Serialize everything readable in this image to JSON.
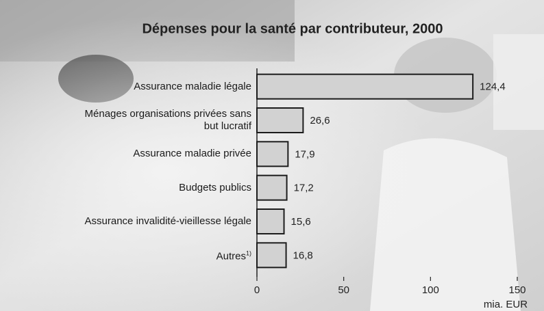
{
  "chart_data": {
    "type": "bar",
    "orientation": "horizontal",
    "title": "Dépenses pour la santé par contributeur, 2000",
    "categories": [
      "Assurance maladie légale",
      "Ménages organisations privées sans but lucratif",
      "Assurance maladie privée",
      "Budgets publics",
      "Assurance invalidité-vieillesse légale",
      "Autres"
    ],
    "category_superscripts": [
      null,
      null,
      null,
      null,
      null,
      "1)"
    ],
    "values": [
      124.4,
      26.6,
      17.9,
      17.2,
      15.6,
      16.8
    ],
    "value_labels": [
      "124,4",
      "26,6",
      "17,9",
      "17,2",
      "15,6",
      "16,8"
    ],
    "color": "#d2d2d2",
    "xlim": [
      0,
      150
    ],
    "xticks": [
      0,
      50,
      100,
      150
    ],
    "x_label": "mia. EUR"
  }
}
